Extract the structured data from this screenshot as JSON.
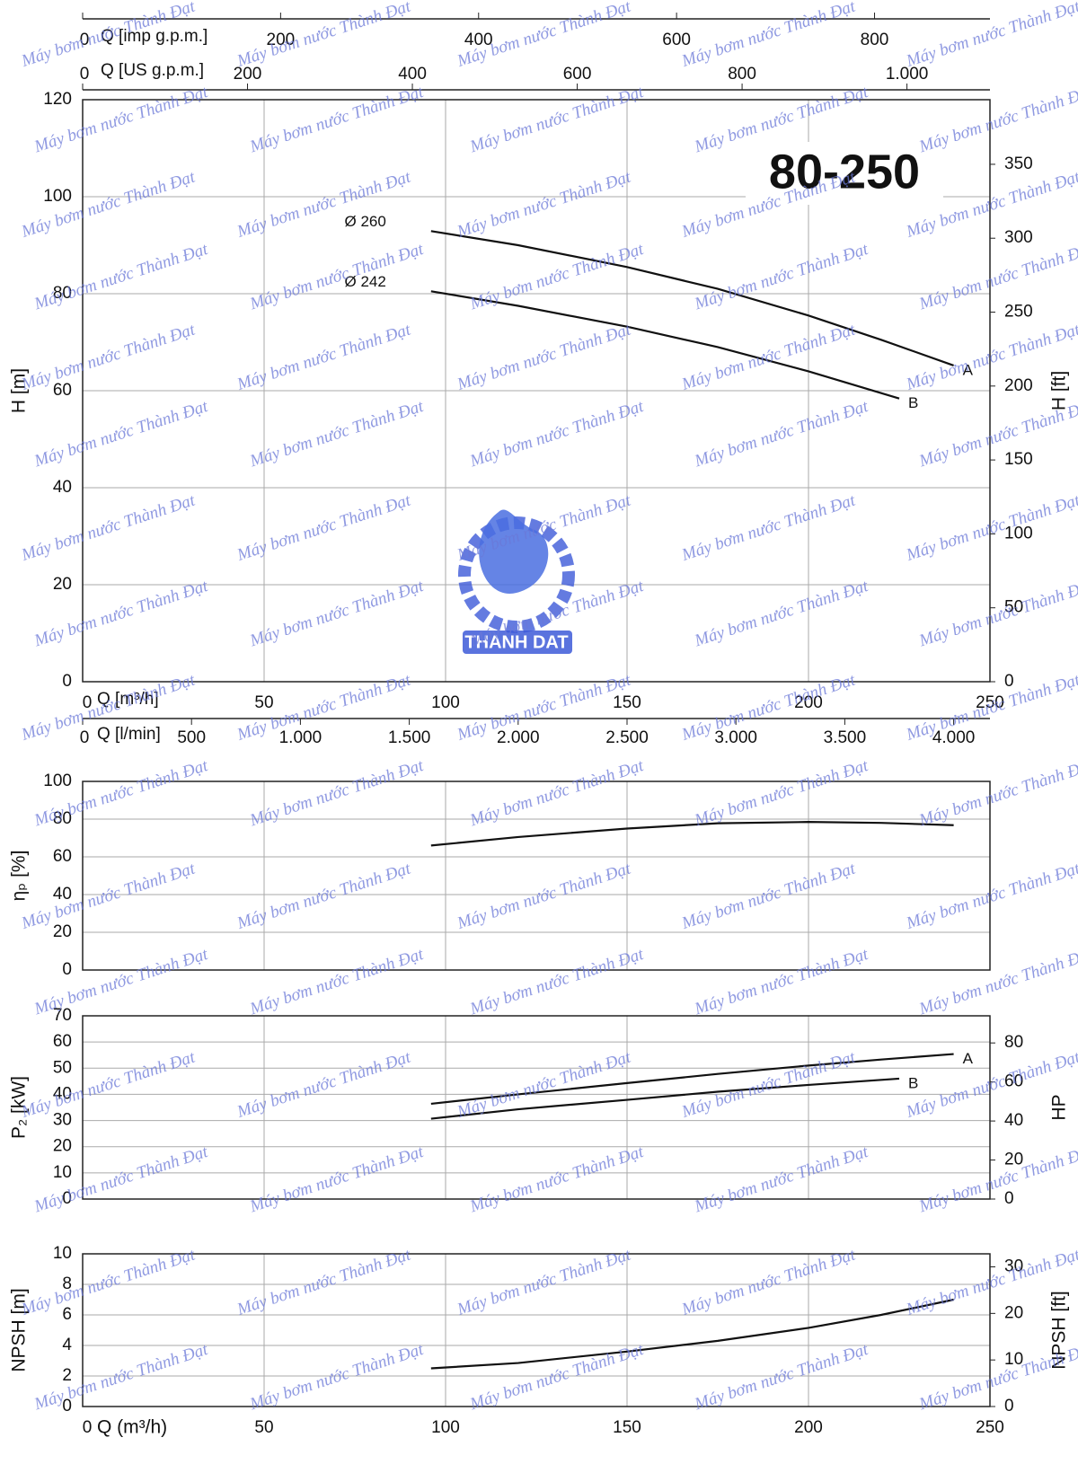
{
  "watermark": "Máy bơm nước Thành Đạt",
  "logo_text": "THANH DAT",
  "chart_data": [
    {
      "type": "line",
      "title": "80-250",
      "xlim": [
        0,
        250
      ],
      "xticks": [
        0,
        50,
        100,
        150,
        200,
        250
      ],
      "xlabel": "Q [m³/h]",
      "ylim": [
        0,
        120
      ],
      "yticks": [
        0,
        20,
        40,
        60,
        80,
        100,
        120
      ],
      "ylabel": "H [m]",
      "y2lim": [
        0,
        393.7
      ],
      "y2ticks": [
        0,
        50,
        100,
        150,
        200,
        250,
        300,
        350
      ],
      "y2label": "H [ft]",
      "grid": true,
      "top_axes": [
        {
          "label": "Q [imp g.p.m.]",
          "lim": [
            0,
            916.6
          ],
          "ticks": [
            0,
            200,
            400,
            600,
            800
          ]
        },
        {
          "label": "Q [US g.p.m.]",
          "lim": [
            0,
            1100.7
          ],
          "ticks": [
            0,
            200,
            400,
            600,
            800,
            {
              "value": 1000,
              "label": "1.000"
            }
          ]
        }
      ],
      "bottom_axis": {
        "label": "Q [l/min]",
        "lim": [
          0,
          4166.7
        ],
        "ticks": [
          0,
          500,
          {
            "value": 1000,
            "label": "1.000"
          },
          {
            "value": 1500,
            "label": "1.500"
          },
          {
            "value": 2000,
            "label": "2.000"
          },
          {
            "value": 2500,
            "label": "2.500"
          },
          {
            "value": 3000,
            "label": "3.000"
          },
          {
            "value": 3500,
            "label": "3.500"
          },
          {
            "value": 4000,
            "label": "4.000"
          }
        ]
      },
      "series": [
        {
          "name": "A",
          "label": "Ø 260",
          "color": "#111111",
          "x": [
            96,
            120,
            150,
            175,
            200,
            220,
            240
          ],
          "values": [
            92.9,
            90.0,
            85.5,
            81.0,
            75.5,
            70.5,
            65.2
          ]
        },
        {
          "name": "B",
          "label": "Ø 242",
          "color": "#111111",
          "x": [
            96,
            120,
            150,
            175,
            200,
            225
          ],
          "values": [
            80.5,
            77.5,
            73.2,
            69.0,
            64.0,
            58.4
          ]
        }
      ]
    },
    {
      "type": "line",
      "xlim": [
        0,
        250
      ],
      "ylim": [
        0,
        100
      ],
      "yticks": [
        0,
        20,
        40,
        60,
        80,
        100
      ],
      "ylabel": "ηₚ [%]",
      "grid": true,
      "series": [
        {
          "color": "#111111",
          "x": [
            96,
            120,
            150,
            175,
            200,
            220,
            240
          ],
          "values": [
            66.0,
            70.5,
            75.0,
            77.8,
            78.5,
            78.0,
            76.8
          ]
        }
      ]
    },
    {
      "type": "line",
      "xlim": [
        0,
        250
      ],
      "ylim": [
        0,
        70
      ],
      "yticks": [
        0,
        10,
        20,
        30,
        40,
        50,
        60,
        70
      ],
      "ylabel": "P₂ [kW]",
      "y2lim": [
        0,
        93.9
      ],
      "y2ticks": [
        0,
        20,
        40,
        60,
        80
      ],
      "y2label": "HP",
      "grid": true,
      "series": [
        {
          "name": "A",
          "color": "#111111",
          "x": [
            96,
            120,
            150,
            175,
            200,
            220,
            240
          ],
          "values": [
            36.4,
            40.0,
            44.3,
            47.8,
            51.0,
            53.3,
            55.4
          ]
        },
        {
          "name": "B",
          "color": "#111111",
          "x": [
            96,
            120,
            150,
            175,
            200,
            225
          ],
          "values": [
            30.7,
            34.3,
            37.9,
            41.0,
            43.6,
            46.0
          ]
        }
      ]
    },
    {
      "type": "line",
      "xlim": [
        0,
        250
      ],
      "xticks": [
        0,
        50,
        100,
        150,
        200,
        250
      ],
      "xlabel": "Q (m³/h)",
      "ylim": [
        0,
        10
      ],
      "yticks": [
        0,
        2,
        4,
        6,
        8,
        10
      ],
      "ylabel": "NPSH [m]",
      "y2lim": [
        0,
        32.8
      ],
      "y2ticks": [
        0,
        10,
        20,
        30
      ],
      "y2label": "NPSH [ft]",
      "grid": true,
      "series": [
        {
          "color": "#111111",
          "x": [
            96,
            120,
            150,
            175,
            200,
            220,
            240
          ],
          "values": [
            2.5,
            2.85,
            3.6,
            4.3,
            5.15,
            6.0,
            7.0
          ]
        }
      ]
    }
  ]
}
